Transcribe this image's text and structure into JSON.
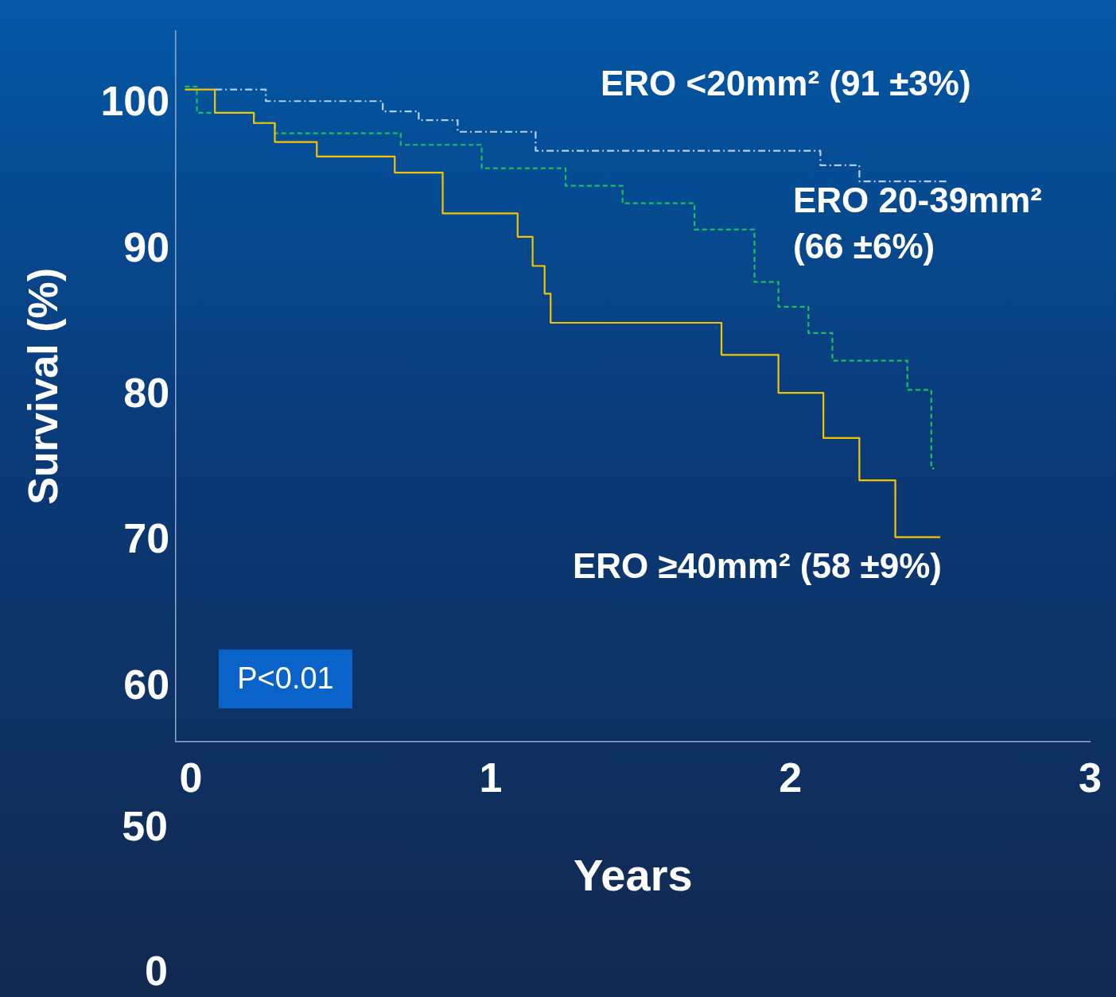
{
  "chart_data": {
    "type": "step",
    "xlabel": "Years",
    "ylabel": "Survival (%)",
    "xlim": [
      -0.05,
      3
    ],
    "xticks": [
      0,
      1,
      2,
      3
    ],
    "ylim": [
      56.3,
      105
    ],
    "yticks": [
      60,
      70,
      80,
      90,
      100
    ],
    "grid": false,
    "legend": false,
    "marker": "none",
    "series": [
      {
        "name": "ERO <20mm² (91 ±3%)",
        "color": "#b8d0f0",
        "line_style": "dashdot",
        "x": [
          0.08,
          0.25,
          0.64,
          0.76,
          0.89,
          1.15,
          2.1,
          2.23,
          2.52
        ],
        "values": [
          101.0,
          100.2,
          99.5,
          98.9,
          98.1,
          96.8,
          95.8,
          94.7,
          94.7
        ]
      },
      {
        "name": "ERO 20-39mm² (66 ±6%)",
        "color": "#19c35a",
        "line_style": "dashed",
        "x": [
          -0.02,
          0.02,
          0.21,
          0.28,
          0.7,
          0.97,
          1.25,
          1.44,
          1.68,
          1.88,
          1.96,
          2.06,
          2.14,
          2.39,
          2.47,
          2.48
        ],
        "values": [
          101.2,
          99.4,
          98.7,
          98.0,
          97.2,
          95.6,
          94.4,
          93.2,
          91.4,
          87.8,
          86.1,
          84.3,
          82.4,
          80.4,
          75.0,
          75.0
        ]
      },
      {
        "name": "ERO ≥40mm² (58 ±9%)",
        "color": "#f5c400",
        "line_style": "solid",
        "x": [
          -0.02,
          0.08,
          0.21,
          0.28,
          0.42,
          0.68,
          0.84,
          1.09,
          1.14,
          1.18,
          1.2,
          1.77,
          1.96,
          2.11,
          2.23,
          2.35,
          2.5
        ],
        "values": [
          101.0,
          99.4,
          98.7,
          97.4,
          96.4,
          95.3,
          92.5,
          90.9,
          88.9,
          87.0,
          85.0,
          82.8,
          80.2,
          77.1,
          74.2,
          70.3,
          70.3
        ]
      }
    ],
    "annotations": [
      "P<0.01",
      "50",
      "0"
    ]
  }
}
